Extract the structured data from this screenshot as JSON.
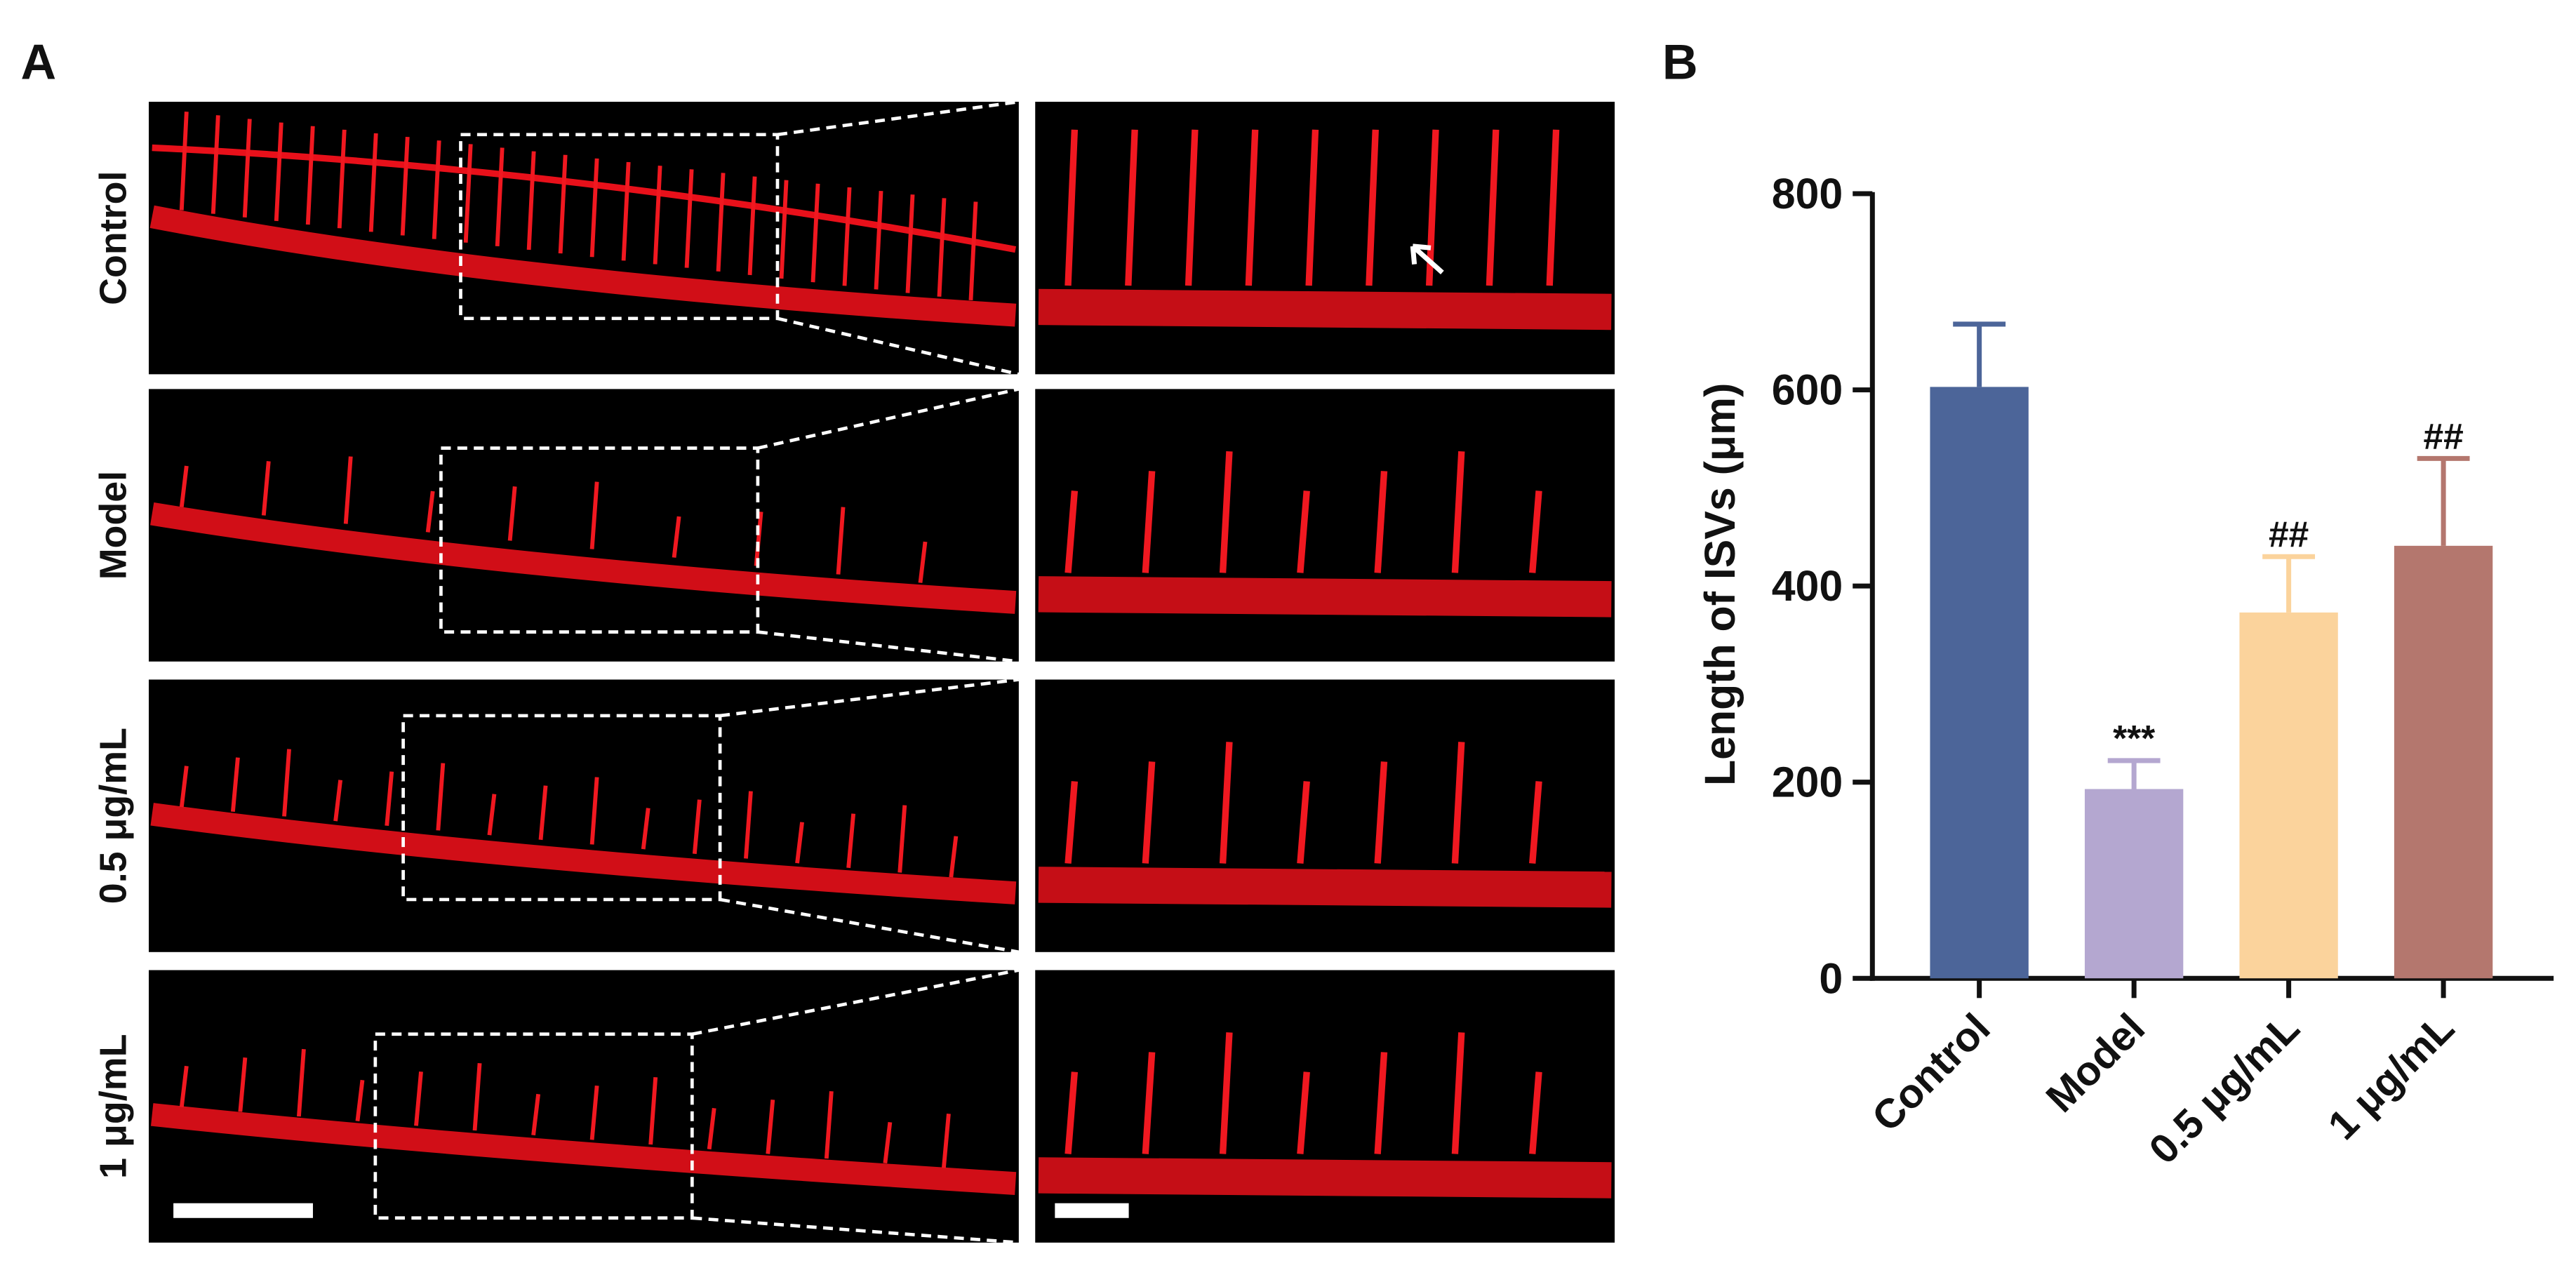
{
  "panel_a": {
    "label": "A",
    "rows": [
      "Control",
      "Model",
      "0.5 μg/mL",
      "1 μg/mL"
    ]
  },
  "chart_data": {
    "type": "bar",
    "panel_label": "B",
    "ylabel": "Length of ISVs (μm)",
    "categories": [
      "Control",
      "Model",
      "0.5 μg/mL",
      "1 μg/mL"
    ],
    "values": [
      603,
      193,
      373,
      441
    ],
    "errors": [
      64,
      29,
      57,
      89
    ],
    "annotations": [
      null,
      "***",
      "##",
      "##"
    ],
    "colors": [
      "#4c6599",
      "#b4a7d0",
      "#fbd39c",
      "#b4776e"
    ],
    "ylim": [
      0,
      800
    ],
    "yticks": [
      0,
      200,
      400,
      600,
      800
    ]
  }
}
